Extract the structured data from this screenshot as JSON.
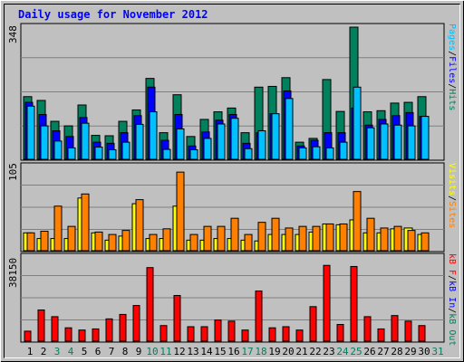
{
  "title": "Daily usage for November 2012",
  "colors": {
    "background": "#c0c0c0",
    "hits": "#00805c",
    "files": "#0000ff",
    "pages": "#00c0ff",
    "sites": "#ff8000",
    "visits": "#ffff00",
    "kb_in": "#0000ff",
    "kb_out": "#00805c",
    "kb_f": "#ff0000",
    "title_text": "#0000ff",
    "day_weekday": "#000000",
    "day_weekend": "#00805c"
  },
  "top_panel": {
    "y_max_label": "348",
    "right_labels": [
      {
        "text": "Pages",
        "color": "#00c0ff"
      },
      {
        "text": "/",
        "color": "#000000"
      },
      {
        "text": "Files",
        "color": "#0000ff"
      },
      {
        "text": "/",
        "color": "#000000"
      },
      {
        "text": "Hits",
        "color": "#00805c"
      }
    ]
  },
  "middle_panel": {
    "y_max_label": "105",
    "right_labels": [
      {
        "text": "Visits",
        "color": "#ffff00"
      },
      {
        "text": "/",
        "color": "#000000"
      },
      {
        "text": "Sites",
        "color": "#ff8000"
      }
    ]
  },
  "bottom_panel": {
    "y_max_label": "38150",
    "right_labels": [
      {
        "text": "kB F",
        "color": "#ff0000"
      },
      {
        "text": "/",
        "color": "#000000"
      },
      {
        "text": "kB In",
        "color": "#0000ff"
      },
      {
        "text": "/",
        "color": "#000000"
      },
      {
        "text": "kB Out",
        "color": "#00805c"
      }
    ]
  },
  "chart_data": {
    "type": "bar",
    "title": "Daily usage for November 2012",
    "categories": [
      "1",
      "2",
      "3",
      "4",
      "5",
      "6",
      "7",
      "8",
      "9",
      "10",
      "11",
      "12",
      "13",
      "14",
      "15",
      "16",
      "17",
      "18",
      "19",
      "20",
      "21",
      "22",
      "23",
      "24",
      "25",
      "26",
      "27",
      "28",
      "29",
      "30",
      "31"
    ],
    "weekend_days": [
      "3",
      "4",
      "10",
      "11",
      "17",
      "18",
      "24",
      "25",
      "31"
    ],
    "panels": [
      {
        "name": "top",
        "ymax": 348,
        "series": [
          {
            "name": "Hits",
            "values": [
              165,
              155,
              100,
              88,
              143,
              63,
              62,
              100,
              130,
              213,
              70,
              170,
              60,
              105,
              125,
              135,
              70,
              190,
              192,
              215,
              45,
              55,
              210,
              126,
              348,
              125,
              128,
              148,
              150,
              165,
              null
            ]
          },
          {
            "name": "Files",
            "values": [
              150,
              118,
              75,
              60,
              110,
              45,
              42,
              70,
              115,
              190,
              50,
              118,
              35,
              72,
              103,
              118,
              42,
              70,
              120,
              180,
              35,
              50,
              70,
              70,
              135,
              90,
              105,
              115,
              123,
              113,
              null
            ]
          },
          {
            "name": "Pages",
            "values": [
              140,
              88,
              48,
              30,
              95,
              32,
              25,
              45,
              92,
              125,
              26,
              80,
              25,
              55,
              93,
              108,
              28,
              75,
              120,
              160,
              30,
              33,
              30,
              45,
              190,
              83,
              93,
              90,
              88,
              113,
              null
            ]
          }
        ]
      },
      {
        "name": "middle",
        "ymax": 105,
        "series": [
          {
            "name": "Visits",
            "values": [
              22,
              15,
              15,
              15,
              65,
              22,
              13,
              18,
              58,
              15,
              15,
              55,
              13,
              13,
              15,
              15,
              13,
              12,
              20,
              20,
              20,
              23,
              33,
              32,
              38,
              22,
              22,
              27,
              28,
              20,
              null
            ]
          },
          {
            "name": "Sites",
            "values": [
              22,
              24,
              55,
              30,
              70,
              23,
              20,
              25,
              63,
              20,
              27,
              97,
              20,
              30,
              30,
              40,
              20,
              35,
              40,
              28,
              30,
              30,
              33,
              33,
              73,
              40,
              28,
              30,
              25,
              22,
              null
            ]
          }
        ]
      },
      {
        "name": "bottom",
        "ymax": 38150,
        "series": [
          {
            "name": "kB F",
            "values": [
              4500,
              14000,
              11000,
              6000,
              5000,
              5500,
              10000,
              12000,
              16000,
              33000,
              7000,
              20500,
              6500,
              6500,
              9500,
              9000,
              5000,
              22500,
              6000,
              6500,
              5000,
              15500,
              34000,
              7500,
              33500,
              11000,
              5500,
              11500,
              9000,
              7000,
              null
            ]
          },
          {
            "name": "kB In",
            "values": [
              0,
              0,
              0,
              0,
              0,
              0,
              0,
              0,
              0,
              0,
              0,
              0,
              0,
              0,
              0,
              0,
              0,
              0,
              0,
              0,
              0,
              0,
              0,
              0,
              0,
              0,
              0,
              0,
              0,
              0,
              null
            ]
          },
          {
            "name": "kB Out",
            "values": [
              0,
              0,
              0,
              0,
              0,
              0,
              0,
              0,
              0,
              0,
              0,
              0,
              0,
              0,
              0,
              0,
              0,
              0,
              0,
              0,
              0,
              0,
              0,
              0,
              0,
              0,
              0,
              0,
              0,
              0,
              null
            ]
          }
        ]
      }
    ]
  }
}
